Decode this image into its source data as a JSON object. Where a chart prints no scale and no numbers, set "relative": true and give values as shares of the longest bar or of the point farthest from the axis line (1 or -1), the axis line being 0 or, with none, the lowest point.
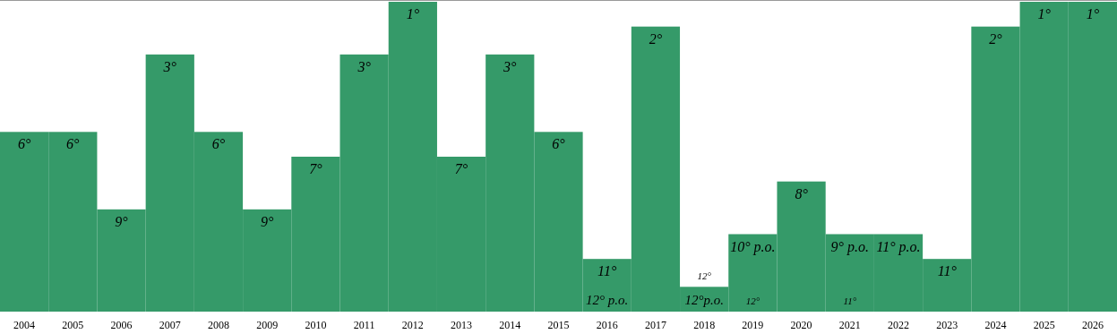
{
  "chart_data": {
    "type": "bar",
    "relative": true,
    "categories": [
      "2004",
      "2005",
      "2006",
      "2007",
      "2008",
      "2009",
      "2010",
      "2011",
      "2012",
      "2013",
      "2014",
      "2015",
      "2016",
      "2017",
      "2018",
      "2019",
      "2020",
      "2021",
      "2022",
      "2023",
      "2024",
      "2025",
      "2026"
    ],
    "values": [
      0.58,
      0.58,
      0.33,
      0.83,
      0.58,
      0.33,
      0.5,
      0.83,
      1,
      0.5,
      0.83,
      0.58,
      0.17,
      0.92,
      0.08,
      0.25,
      0.42,
      0.25,
      0.25,
      0.17,
      0.92,
      1,
      1
    ],
    "color": "#359a69",
    "annotations": [
      {
        "text": "6°",
        "x": "2004",
        "y": 0.58
      },
      {
        "text": "6°",
        "x": "2005",
        "y": 0.58
      },
      {
        "text": "9°",
        "x": "2006",
        "y": 0.33
      },
      {
        "text": "3°",
        "x": "2007",
        "y": 0.83
      },
      {
        "text": "6°",
        "x": "2008",
        "y": 0.58
      },
      {
        "text": "9°",
        "x": "2009",
        "y": 0.33
      },
      {
        "text": "7°",
        "x": "2010",
        "y": 0.5
      },
      {
        "text": "3°",
        "x": "2011",
        "y": 0.83
      },
      {
        "text": "1°",
        "x": "2012",
        "y": 1
      },
      {
        "text": "7°",
        "x": "2013",
        "y": 0.5
      },
      {
        "text": "3°",
        "x": "2014",
        "y": 0.83
      },
      {
        "text": "6°",
        "x": "2015",
        "y": 0.58
      },
      {
        "text": "11°",
        "x": "2016",
        "y": 0.17
      },
      {
        "text": "2°",
        "x": "2017",
        "y": 0.92
      },
      {
        "text": "12°",
        "x": "2018",
        "y": 0.08
      },
      {
        "text": "10° p.o.",
        "x": "2019",
        "y": 0.25
      },
      {
        "text": "8°",
        "x": "2020",
        "y": 0.42
      },
      {
        "text": "9° p.o.",
        "x": "2021",
        "y": 0.25
      },
      {
        "text": "11° p.o.",
        "x": "2022",
        "y": 0.25
      },
      {
        "text": "11°",
        "x": "2023",
        "y": 0.17
      },
      {
        "text": "2°",
        "x": "2024",
        "y": 0.92
      },
      {
        "text": "1°",
        "x": "2025",
        "y": 1
      },
      {
        "text": "1°",
        "x": "2026",
        "y": 1
      },
      {
        "text": "12° p.o.",
        "x": "2016",
        "y": 0
      },
      {
        "text": "12°p.o.",
        "x": "2018",
        "y": 0
      },
      {
        "text": "12°",
        "x": "2019",
        "y": 0
      },
      {
        "text": "11°",
        "x": "2021",
        "y": 0
      }
    ]
  }
}
